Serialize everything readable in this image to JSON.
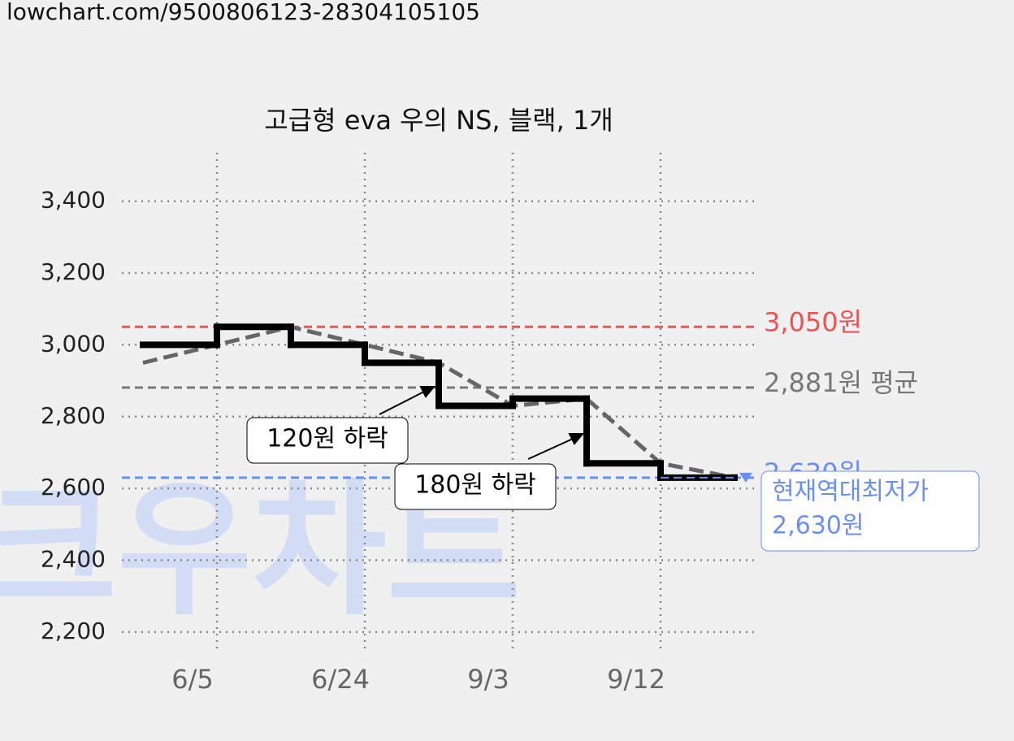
{
  "source_url": "lowchart.com/9500806123-28304105105",
  "watermark": "크우차트",
  "chart_data": {
    "type": "step",
    "title": "고급형 eva 우의 NS, 블랙, 1개",
    "categories": [
      null,
      "6/5",
      null,
      "6/24",
      null,
      "9/3",
      null,
      "9/12",
      null
    ],
    "series": [
      {
        "color": "#000000",
        "style": "solid",
        "values": [
          3000,
          3050,
          3000,
          2950,
          2830,
          2850,
          2670,
          2630,
          2630
        ]
      },
      {
        "color": "#666666",
        "style": "dashed",
        "values": [
          2950,
          3000,
          3050,
          3000,
          2950,
          2830,
          2850,
          2670,
          2630
        ]
      }
    ],
    "ylim": [
      2150,
      3535
    ],
    "yticks": [
      {
        "value": 2200,
        "label": "2,200"
      },
      {
        "value": 2400,
        "label": "2,400"
      },
      {
        "value": 2600,
        "label": "2,600"
      },
      {
        "value": 2800,
        "label": "2,800"
      },
      {
        "value": 3000,
        "label": "3,000"
      },
      {
        "value": 3200,
        "label": "3,200"
      },
      {
        "value": 3400,
        "label": "3,400"
      }
    ],
    "grid": true,
    "reference_lines": [
      {
        "value": 3050,
        "label": "3,050원",
        "color": "#e85555"
      },
      {
        "value": 2881,
        "label": "2,881원 평균",
        "color": "#777777"
      },
      {
        "value": 2630,
        "label": "2,630원",
        "color": "#6b8ff0"
      }
    ],
    "annotations": [
      "120원 하락",
      "180원 하락"
    ],
    "current_label": [
      "현재역대최저가",
      "2,630원"
    ]
  }
}
